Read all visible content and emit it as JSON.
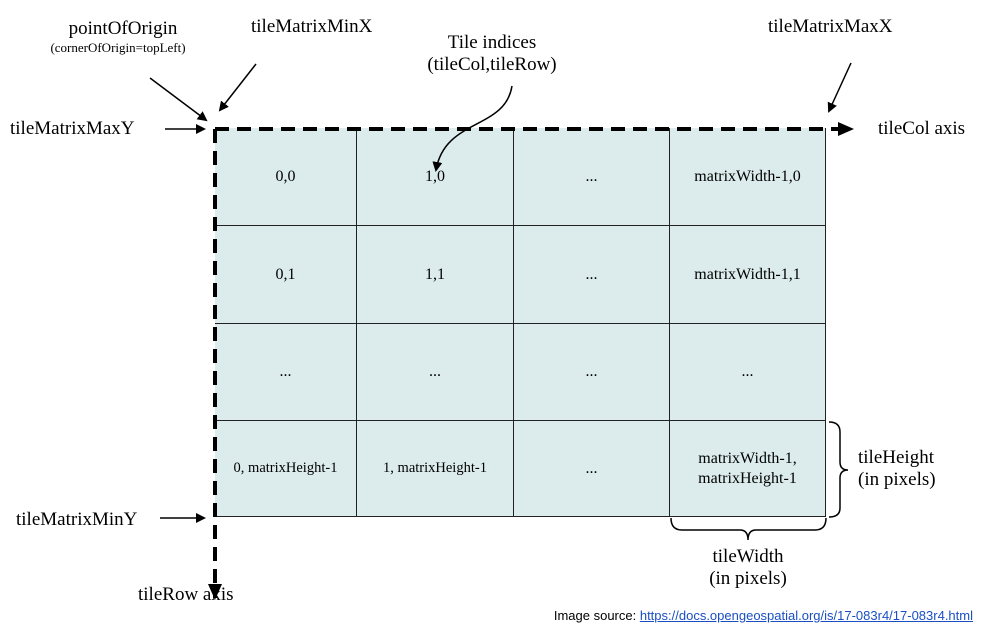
{
  "labels": {
    "point_of_origin": "pointOfOrigin",
    "corner_of_origin": "(cornerOfOrigin=topLeft)",
    "tile_matrix_min_x": "tileMatrixMinX",
    "tile_matrix_max_x": "tileMatrixMaxX",
    "tile_indices_line1": "Tile indices",
    "tile_indices_line2": "(tileCol,tileRow)",
    "tile_matrix_max_y": "tileMatrixMaxY",
    "tile_matrix_min_y": "tileMatrixMinY",
    "tile_col_axis": "tileCol axis",
    "tile_row_axis": "tileRow axis",
    "tile_height_line1": "tileHeight",
    "tile_height_line2": "(in pixels)",
    "tile_width_line1": "tileWidth",
    "tile_width_line2": "(in pixels)"
  },
  "grid": {
    "rows": [
      [
        "0,0",
        "1,0",
        "...",
        "matrixWidth-1,0"
      ],
      [
        "0,1",
        "1,1",
        "...",
        "matrixWidth-1,1"
      ],
      [
        "...",
        "...",
        "...",
        "..."
      ],
      [
        "0, matrixHeight-1",
        "1, matrixHeight-1",
        "...",
        "matrixWidth-1,\nmatrixHeight-1"
      ]
    ]
  },
  "caption": {
    "prefix": "Image source: ",
    "link": "https://docs.opengeospatial.org/is/17-083r4/17-083r4.html"
  }
}
